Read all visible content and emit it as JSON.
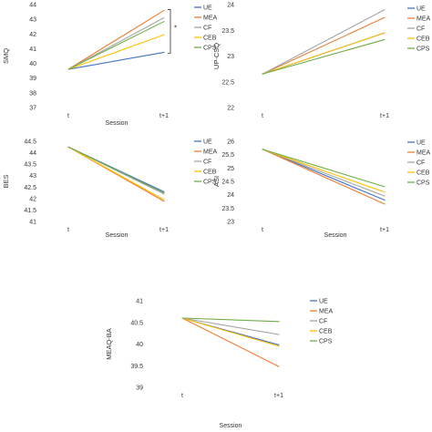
{
  "colors": {
    "UE": "#4472C4",
    "MEA": "#ED7D31",
    "CF": "#A5A5A5",
    "CEB": "#FFC000",
    "CPS": "#70AD47"
  },
  "chart_data": [
    {
      "type": "line",
      "title": "",
      "xlabel": "Session",
      "ylabel": "SMQ",
      "categories": [
        "t",
        "t+1"
      ],
      "ylim": [
        37,
        44
      ],
      "yticks": [
        "37",
        "38",
        "39",
        "40",
        "41",
        "42",
        "43",
        "44"
      ],
      "legend": "right",
      "annotation": "*",
      "series": [
        {
          "name": "UE",
          "values": [
            39.6,
            40.75
          ]
        },
        {
          "name": "MEA",
          "values": [
            39.6,
            43.6
          ]
        },
        {
          "name": "CF",
          "values": [
            39.6,
            43.1
          ]
        },
        {
          "name": "CEB",
          "values": [
            39.6,
            41.95
          ]
        },
        {
          "name": "CPS",
          "values": [
            39.6,
            42.85
          ]
        }
      ]
    },
    {
      "type": "line",
      "title": "",
      "xlabel": "",
      "ylabel": "UP-CSQ",
      "categories": [
        "t",
        "t+1"
      ],
      "ylim": [
        22,
        24
      ],
      "yticks": [
        "22",
        "22.5",
        "23",
        "23.5",
        "24"
      ],
      "legend": "right",
      "series": [
        {
          "name": "UE",
          "values": [
            22.65,
            23.45
          ]
        },
        {
          "name": "MEA",
          "values": [
            22.65,
            23.75
          ]
        },
        {
          "name": "CF",
          "values": [
            22.65,
            23.9
          ]
        },
        {
          "name": "CEB",
          "values": [
            22.65,
            23.45
          ]
        },
        {
          "name": "CPS",
          "values": [
            22.65,
            23.32
          ]
        }
      ]
    },
    {
      "type": "line",
      "title": "",
      "xlabel": "Session",
      "ylabel": "BES",
      "categories": [
        "t",
        "t+1"
      ],
      "ylim": [
        41,
        44.5
      ],
      "yticks": [
        "41",
        "41.5",
        "42",
        "42.5",
        "43",
        "43.5",
        "44",
        "44.5"
      ],
      "legend": "right",
      "series": [
        {
          "name": "UE",
          "values": [
            44.25,
            42.3
          ]
        },
        {
          "name": "MEA",
          "values": [
            44.25,
            41.88
          ]
        },
        {
          "name": "CF",
          "values": [
            44.25,
            42.2
          ]
        },
        {
          "name": "CEB",
          "values": [
            44.25,
            41.95
          ]
        },
        {
          "name": "CPS",
          "values": [
            44.25,
            42.25
          ]
        }
      ]
    },
    {
      "type": "line",
      "title": "",
      "xlabel": "Session",
      "ylabel": "ASI",
      "categories": [
        "t",
        "t+1"
      ],
      "ylim": [
        23,
        26
      ],
      "yticks": [
        "23",
        "23.5",
        "24",
        "24.5",
        "25",
        "25.5",
        "26"
      ],
      "legend": "right",
      "series": [
        {
          "name": "UE",
          "values": [
            25.7,
            23.8
          ]
        },
        {
          "name": "MEA",
          "values": [
            25.7,
            23.65
          ]
        },
        {
          "name": "CF",
          "values": [
            25.7,
            23.95
          ]
        },
        {
          "name": "CEB",
          "values": [
            25.7,
            24.1
          ]
        },
        {
          "name": "CPS",
          "values": [
            25.7,
            24.3
          ]
        }
      ]
    },
    {
      "type": "line",
      "title": "",
      "xlabel": "Session",
      "ylabel": "MEAQ-BA",
      "categories": [
        "t",
        "t+1"
      ],
      "ylim": [
        39,
        41
      ],
      "yticks": [
        "39",
        "39.5",
        "40",
        "40.5",
        "41"
      ],
      "legend": "right",
      "series": [
        {
          "name": "UE",
          "values": [
            40.6,
            39.98
          ]
        },
        {
          "name": "MEA",
          "values": [
            40.6,
            39.48
          ]
        },
        {
          "name": "CF",
          "values": [
            40.6,
            40.22
          ]
        },
        {
          "name": "CEB",
          "values": [
            40.6,
            39.95
          ]
        },
        {
          "name": "CPS",
          "values": [
            40.6,
            40.52
          ]
        }
      ]
    }
  ]
}
